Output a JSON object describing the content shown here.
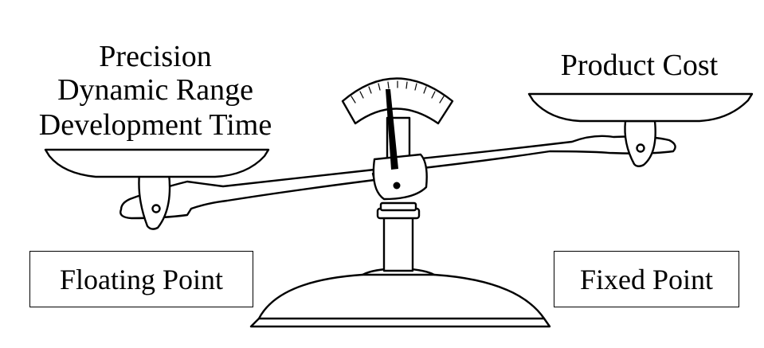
{
  "left_pan_labels": [
    "Precision",
    "Dynamic Range",
    "Development Time"
  ],
  "right_pan_label": "Product Cost",
  "left_box_label": "Floating Point",
  "right_box_label": "Fixed Point",
  "colors": {
    "ink": "#000000",
    "background": "#ffffff"
  }
}
